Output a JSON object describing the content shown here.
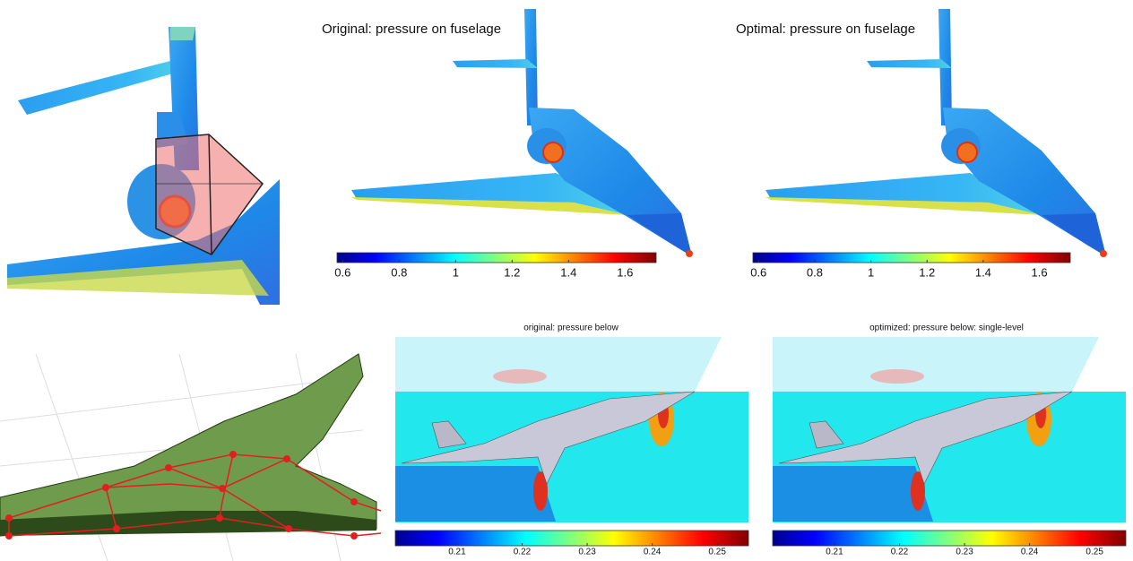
{
  "panels": [
    {
      "title": "Original: pressure on fuselage",
      "colorbar": {
        "lim": [
          0.58,
          1.71
        ],
        "ticks": [
          0.6,
          0.8,
          1,
          1.2,
          1.4,
          1.6
        ]
      }
    },
    {
      "title": "Optimal: pressure on fuselage",
      "colorbar": {
        "lim": [
          0.58,
          1.71
        ],
        "ticks": [
          0.6,
          0.8,
          1,
          1.2,
          1.4,
          1.6
        ]
      }
    },
    {
      "title": "original: pressure below",
      "colorbar": {
        "lim": [
          0.2005,
          0.2548
        ],
        "ticks": [
          0.21,
          0.22,
          0.23,
          0.24,
          0.25
        ]
      }
    },
    {
      "title": "optimized: pressure below: single-level",
      "colorbar": {
        "lim": [
          0.2005,
          0.2548
        ],
        "ticks": [
          0.21,
          0.22,
          0.23,
          0.24,
          0.25
        ]
      }
    }
  ]
}
